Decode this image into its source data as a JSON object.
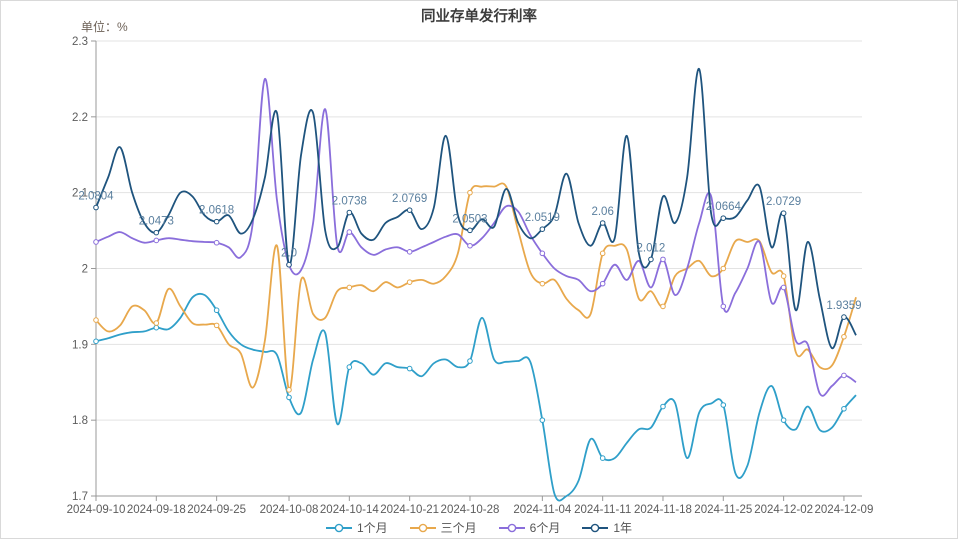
{
  "title": "同业存单发行利率",
  "unit_label": "单位：%",
  "chart_data": {
    "type": "line",
    "n_points": 64,
    "x_tick_labels": [
      "2024-09-10",
      "2024-09-18",
      "2024-09-25",
      "2024-10-08",
      "2024-10-14",
      "2024-10-21",
      "2024-10-28",
      "2024-11-04",
      "2024-11-11",
      "2024-11-18",
      "2024-11-25",
      "2024-12-02",
      "2024-12-09"
    ],
    "tick_indices": [
      0,
      5,
      10,
      16,
      21,
      26,
      31,
      37,
      42,
      47,
      52,
      57,
      62
    ],
    "ylim": [
      1.7,
      2.3
    ],
    "y_tick_labels": [
      "2.3",
      "2.2",
      "2.1",
      "2",
      "1.9",
      "1.8",
      "1.7"
    ],
    "y_tick_values": [
      2.3,
      2.2,
      2.1,
      2.0,
      1.9,
      1.8,
      1.7
    ],
    "grid": true,
    "legend_position": "bottom",
    "axis_color": "#999999",
    "grid_color": "#e3e3e3",
    "tick_label_color": "#5c5c5c",
    "point_label_color": "#5a7f9e",
    "series": [
      {
        "name": "1个月",
        "color": "#2f9fc9",
        "values": [
          1.904,
          1.908,
          1.913,
          1.916,
          1.917,
          1.922,
          1.92,
          1.935,
          1.962,
          1.965,
          1.945,
          1.917,
          1.9,
          1.893,
          1.89,
          1.886,
          1.83,
          1.81,
          1.88,
          1.915,
          1.795,
          1.87,
          1.875,
          1.86,
          1.875,
          1.87,
          1.868,
          1.858,
          1.875,
          1.88,
          1.87,
          1.878,
          1.935,
          1.88,
          1.877,
          1.878,
          1.877,
          1.8,
          1.703,
          1.7,
          1.72,
          1.775,
          1.75,
          1.75,
          1.77,
          1.788,
          1.79,
          1.818,
          1.823,
          1.75,
          1.81,
          1.822,
          1.82,
          1.73,
          1.74,
          1.81,
          1.845,
          1.8,
          1.788,
          1.818,
          1.787,
          1.79,
          1.815,
          1.833
        ]
      },
      {
        "name": "三个月",
        "color": "#e8a84c",
        "values": [
          1.932,
          1.917,
          1.925,
          1.95,
          1.945,
          1.928,
          1.973,
          1.95,
          1.928,
          1.926,
          1.925,
          1.9,
          1.888,
          1.843,
          1.905,
          2.03,
          1.84,
          1.985,
          1.94,
          1.935,
          1.97,
          1.975,
          1.978,
          1.97,
          1.982,
          1.975,
          1.982,
          1.985,
          1.98,
          1.99,
          2.02,
          2.1,
          2.108,
          2.108,
          2.108,
          2.05,
          1.995,
          1.98,
          1.985,
          1.96,
          1.945,
          1.94,
          2.02,
          2.03,
          2.025,
          1.96,
          1.97,
          1.95,
          1.99,
          2.0,
          2.01,
          1.99,
          2.0,
          2.036,
          2.035,
          2.036,
          1.995,
          1.99,
          1.89,
          1.893,
          1.87,
          1.872,
          1.91,
          1.962
        ]
      },
      {
        "name": "6个月",
        "color": "#8a6edb",
        "values": [
          2.035,
          2.042,
          2.048,
          2.04,
          2.034,
          2.037,
          2.04,
          2.038,
          2.036,
          2.035,
          2.034,
          2.028,
          2.015,
          2.06,
          2.25,
          2.09,
          2.005,
          1.998,
          2.06,
          2.21,
          2.03,
          2.048,
          2.028,
          2.018,
          2.025,
          2.028,
          2.022,
          2.028,
          2.035,
          2.042,
          2.045,
          2.03,
          2.04,
          2.06,
          2.082,
          2.075,
          2.044,
          2.02,
          2.0,
          1.99,
          1.985,
          1.97,
          1.98,
          2.005,
          1.985,
          2.01,
          1.975,
          2.012,
          1.965,
          2.0,
          2.06,
          2.095,
          1.95,
          1.968,
          2.0,
          2.035,
          1.955,
          1.975,
          1.905,
          1.9,
          1.835,
          1.845,
          1.859,
          1.85
        ]
      },
      {
        "name": "1年",
        "color": "#1f547e",
        "values": [
          2.0804,
          2.12,
          2.16,
          2.1,
          2.06,
          2.0473,
          2.07,
          2.1,
          2.095,
          2.07,
          2.0618,
          2.07,
          2.046,
          2.065,
          2.12,
          2.205,
          2.005,
          2.15,
          2.205,
          2.05,
          2.028,
          2.0738,
          2.046,
          2.038,
          2.06,
          2.068,
          2.0769,
          2.052,
          2.08,
          2.175,
          2.07,
          2.0503,
          2.065,
          2.055,
          2.105,
          2.06,
          2.04,
          2.0519,
          2.07,
          2.125,
          2.06,
          2.03,
          2.06,
          2.04,
          2.175,
          2.02,
          2.012,
          2.095,
          2.06,
          2.12,
          2.263,
          2.072,
          2.0664,
          2.068,
          2.09,
          2.108,
          2.028,
          2.0729,
          1.945,
          2.035,
          1.96,
          1.895,
          1.9359,
          1.912
        ],
        "labels": [
          {
            "index": 0,
            "text": "2.0804"
          },
          {
            "index": 5,
            "text": "2.0473"
          },
          {
            "index": 10,
            "text": "2.0618"
          },
          {
            "index": 16,
            "text": "2.0"
          },
          {
            "index": 21,
            "text": "2.0738"
          },
          {
            "index": 26,
            "text": "2.0769"
          },
          {
            "index": 31,
            "text": "2.0503"
          },
          {
            "index": 37,
            "text": "2.0519"
          },
          {
            "index": 42,
            "text": "2.06"
          },
          {
            "index": 46,
            "text": "2.012"
          },
          {
            "index": 52,
            "text": "2.0664"
          },
          {
            "index": 57,
            "text": "2.0729"
          },
          {
            "index": 62,
            "text": "1.9359"
          }
        ]
      }
    ]
  }
}
